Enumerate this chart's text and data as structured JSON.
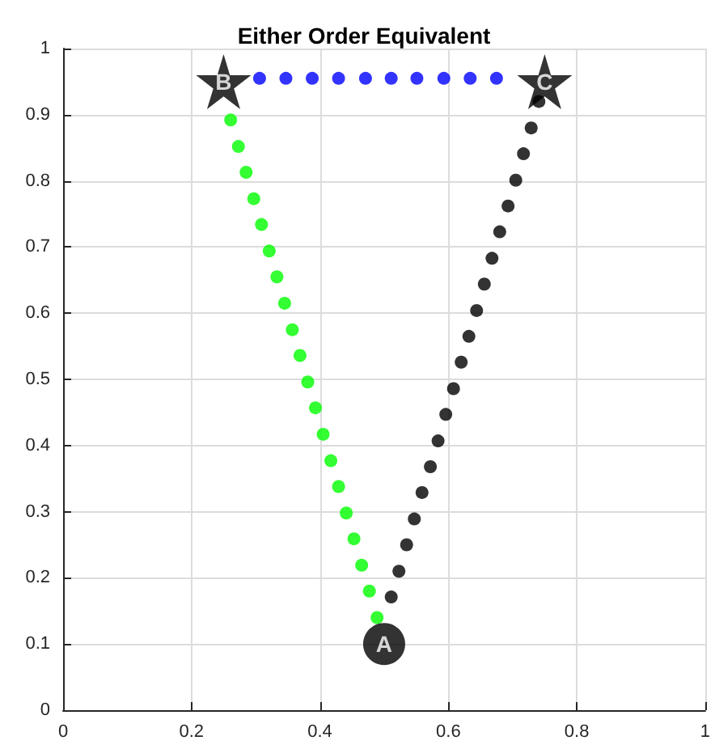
{
  "chart_data": {
    "type": "scatter",
    "title": "Either Order Equivalent",
    "xlim": [
      0,
      1
    ],
    "ylim": [
      0,
      1
    ],
    "xticks": [
      0,
      0.2,
      0.4,
      0.6,
      0.8,
      1
    ],
    "yticks": [
      0,
      0.1,
      0.2,
      0.3,
      0.4,
      0.5,
      0.6,
      0.7,
      0.8,
      0.9,
      1
    ],
    "grid": true,
    "marker": "circle",
    "series": [
      {
        "color": "#0000ff",
        "x": [
          0.306,
          0.347,
          0.388,
          0.429,
          0.471,
          0.511,
          0.551,
          0.593,
          0.634,
          0.675
        ],
        "values": [
          0.955,
          0.955,
          0.955,
          0.955,
          0.955,
          0.955,
          0.955,
          0.955,
          0.955,
          0.955
        ]
      },
      {
        "color": "#00ff00",
        "x": [
          0.261,
          0.273,
          0.285,
          0.297,
          0.309,
          0.321,
          0.333,
          0.345,
          0.357,
          0.369,
          0.381,
          0.393,
          0.405,
          0.417,
          0.429,
          0.441,
          0.453,
          0.465,
          0.477,
          0.489
        ],
        "values": [
          0.892,
          0.852,
          0.813,
          0.773,
          0.734,
          0.694,
          0.655,
          0.615,
          0.575,
          0.536,
          0.496,
          0.457,
          0.417,
          0.377,
          0.338,
          0.298,
          0.259,
          0.219,
          0.18,
          0.14
        ]
      },
      {
        "color": "#000000",
        "x": [
          0.511,
          0.523,
          0.535,
          0.547,
          0.559,
          0.572,
          0.584,
          0.596,
          0.608,
          0.62,
          0.632,
          0.644,
          0.656,
          0.668,
          0.68,
          0.693,
          0.705,
          0.717,
          0.729,
          0.741
        ],
        "values": [
          0.171,
          0.21,
          0.25,
          0.289,
          0.329,
          0.368,
          0.407,
          0.447,
          0.486,
          0.526,
          0.565,
          0.604,
          0.644,
          0.683,
          0.723,
          0.762,
          0.801,
          0.841,
          0.88,
          0.92
        ]
      },
      {
        "color": "#000000",
        "marker": "circle",
        "x": [
          0.5
        ],
        "values": [
          0.1
        ],
        "value_labels": [
          "A"
        ]
      },
      {
        "color": "#000000",
        "marker": "star",
        "x": [
          0.25,
          0.75
        ],
        "values": [
          0.95,
          0.95
        ],
        "value_labels": [
          "B",
          "C"
        ]
      }
    ]
  }
}
